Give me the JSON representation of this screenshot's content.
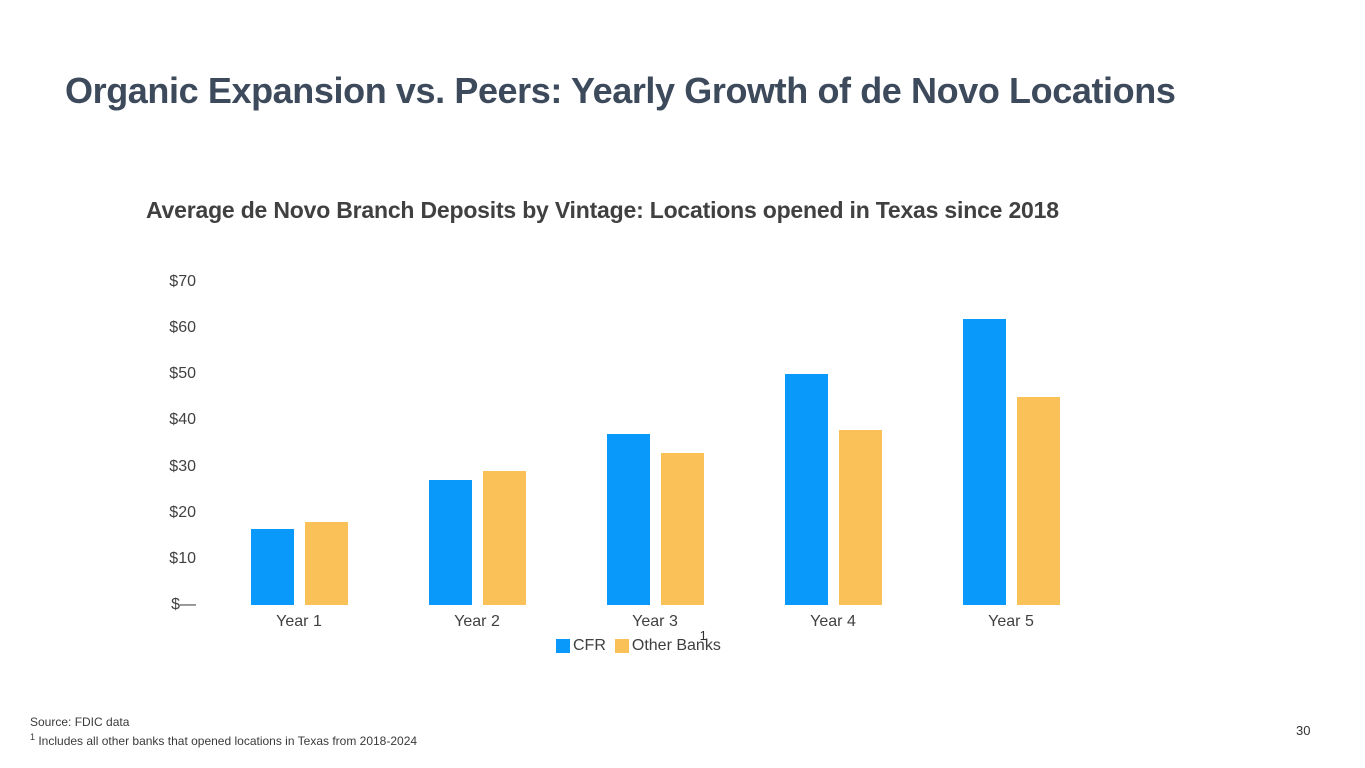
{
  "slide": {
    "title": "Organic Expansion vs. Peers: Yearly Growth of de Novo Locations",
    "page_number": "30"
  },
  "footer": {
    "source": "Source: FDIC data",
    "note_marker": "1",
    "note_text": " Includes all other banks that opened locations in Texas from 2018-2024"
  },
  "chart_data": {
    "type": "bar",
    "title": "Average de Novo Branch Deposits by Vintage: Locations opened in Texas since 2018",
    "categories": [
      "Year 1",
      "Year 2",
      "Year 3",
      "Year 4",
      "Year 5"
    ],
    "series": [
      {
        "name": "CFR",
        "color": "#0899fb",
        "values": [
          16.5,
          27,
          37,
          50,
          62
        ]
      },
      {
        "name": "Other Banks",
        "footnote_marker": "1",
        "color": "#f9c157",
        "values": [
          18,
          29,
          33,
          38,
          45
        ]
      }
    ],
    "xlabel": "",
    "ylabel": "",
    "ylim": [
      0,
      70
    ],
    "yticks": [
      {
        "value": 70,
        "label": "$70"
      },
      {
        "value": 60,
        "label": "$60"
      },
      {
        "value": 50,
        "label": "$50"
      },
      {
        "value": 40,
        "label": "$40"
      },
      {
        "value": 30,
        "label": "$30"
      },
      {
        "value": 20,
        "label": "$20"
      },
      {
        "value": 10,
        "label": "$10"
      },
      {
        "value": 0,
        "label": "$—"
      }
    ],
    "grid": false,
    "legend_position": "bottom"
  }
}
